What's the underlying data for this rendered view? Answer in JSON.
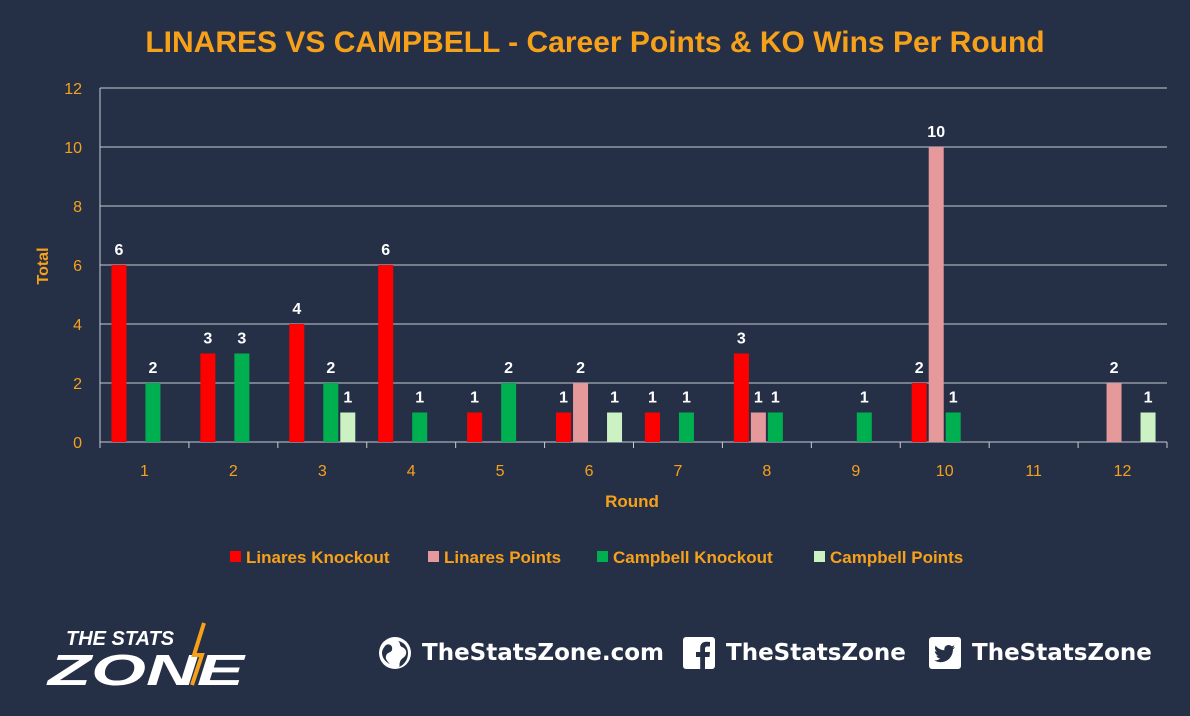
{
  "chart_data": {
    "type": "bar",
    "title": "LINARES VS CAMPBELL - Career Points & KO Wins Per Round",
    "xlabel": "Round",
    "ylabel": "Total",
    "ylim": [
      0,
      12
    ],
    "yticks": [
      0,
      2,
      4,
      6,
      8,
      10,
      12
    ],
    "grid": true,
    "legend_position": "bottom",
    "categories": [
      "1",
      "2",
      "3",
      "4",
      "5",
      "6",
      "7",
      "8",
      "9",
      "10",
      "11",
      "12"
    ],
    "series": [
      {
        "name": "Linares Knockout",
        "color": "#ff0000",
        "values": [
          6,
          3,
          4,
          6,
          1,
          1,
          1,
          3,
          0,
          2,
          0,
          0
        ]
      },
      {
        "name": "Linares Points",
        "color": "#e6999a",
        "values": [
          0,
          0,
          0,
          0,
          0,
          2,
          0,
          1,
          0,
          10,
          0,
          2
        ]
      },
      {
        "name": "Campbell Knockout",
        "color": "#00b050",
        "values": [
          2,
          3,
          2,
          1,
          2,
          0,
          1,
          1,
          1,
          1,
          0,
          0
        ]
      },
      {
        "name": "Campbell Points",
        "color": "#ccf2c4",
        "values": [
          0,
          0,
          1,
          0,
          0,
          1,
          0,
          0,
          0,
          0,
          0,
          1
        ]
      }
    ]
  },
  "colors": {
    "background": "#253047",
    "title": "#f7a11a",
    "axis_text": "#f7a11a",
    "grid": "#c8ccd6",
    "data_label": "#ffffff"
  },
  "footer": {
    "logo_top": "THE STATS",
    "logo_bottom": "ZONE",
    "website": "TheStatsZone.com",
    "facebook": "TheStatsZone",
    "twitter": "TheStatsZone"
  },
  "icons": {
    "website": "globe-icon",
    "facebook": "facebook-icon",
    "twitter": "twitter-icon"
  }
}
